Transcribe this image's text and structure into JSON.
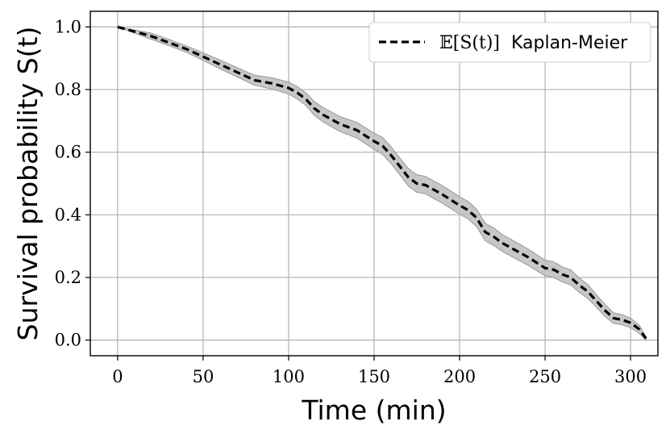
{
  "chart_data": {
    "type": "line",
    "title": "",
    "xlabel": "Time (min)",
    "ylabel": "Survival probability S(t)",
    "xlim": [
      -16,
      316
    ],
    "ylim": [
      -0.05,
      1.05
    ],
    "xticks": [
      0,
      50,
      100,
      150,
      200,
      250,
      300
    ],
    "yticks": [
      0.0,
      0.2,
      0.4,
      0.6,
      0.8,
      1.0
    ],
    "xtick_labels": [
      "0",
      "50",
      "100",
      "150",
      "200",
      "250",
      "300"
    ],
    "ytick_labels": [
      "0.0",
      "0.2",
      "0.4",
      "0.6",
      "0.8",
      "1.0"
    ],
    "grid": true,
    "legend_position": "top-right",
    "series": [
      {
        "name": "E[S(t)] Kaplan-Meier",
        "legend_math": "𝔼[S(t)]",
        "legend_text": "Kaplan-Meier",
        "style": "dashed",
        "color": "#000000",
        "band_color": "#bdbdbd",
        "x": [
          0,
          10,
          20,
          30,
          40,
          50,
          60,
          70,
          80,
          90,
          100,
          105,
          110,
          115,
          120,
          130,
          140,
          150,
          155,
          160,
          165,
          170,
          175,
          180,
          190,
          200,
          205,
          210,
          215,
          220,
          225,
          230,
          240,
          250,
          255,
          260,
          265,
          270,
          275,
          280,
          285,
          290,
          295,
          300,
          305,
          309
        ],
        "y": [
          1.0,
          0.985,
          0.97,
          0.95,
          0.93,
          0.905,
          0.88,
          0.855,
          0.83,
          0.82,
          0.805,
          0.79,
          0.77,
          0.74,
          0.72,
          0.69,
          0.67,
          0.635,
          0.62,
          0.59,
          0.555,
          0.52,
          0.5,
          0.495,
          0.465,
          0.43,
          0.415,
          0.39,
          0.345,
          0.33,
          0.31,
          0.295,
          0.265,
          0.23,
          0.225,
          0.21,
          0.2,
          0.175,
          0.155,
          0.125,
          0.095,
          0.07,
          0.065,
          0.055,
          0.035,
          0.005
        ],
        "lower": [
          1.0,
          0.98,
          0.96,
          0.94,
          0.92,
          0.893,
          0.866,
          0.84,
          0.814,
          0.802,
          0.786,
          0.77,
          0.75,
          0.718,
          0.697,
          0.666,
          0.645,
          0.609,
          0.593,
          0.563,
          0.528,
          0.492,
          0.472,
          0.467,
          0.437,
          0.402,
          0.387,
          0.362,
          0.317,
          0.302,
          0.283,
          0.268,
          0.239,
          0.205,
          0.2,
          0.186,
          0.176,
          0.152,
          0.133,
          0.105,
          0.076,
          0.053,
          0.049,
          0.04,
          0.022,
          0.0
        ],
        "upper": [
          1.0,
          0.99,
          0.98,
          0.96,
          0.94,
          0.917,
          0.894,
          0.87,
          0.846,
          0.838,
          0.824,
          0.81,
          0.79,
          0.762,
          0.743,
          0.714,
          0.695,
          0.661,
          0.647,
          0.617,
          0.582,
          0.548,
          0.528,
          0.523,
          0.493,
          0.458,
          0.443,
          0.418,
          0.373,
          0.358,
          0.337,
          0.322,
          0.291,
          0.255,
          0.25,
          0.234,
          0.224,
          0.198,
          0.177,
          0.145,
          0.114,
          0.087,
          0.081,
          0.07,
          0.048,
          0.01
        ]
      }
    ]
  }
}
